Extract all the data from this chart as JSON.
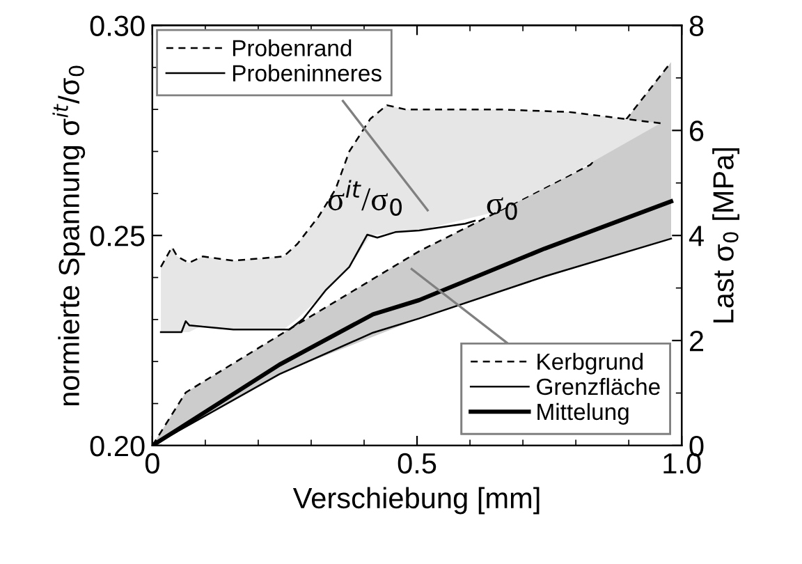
{
  "chart_data": {
    "type": "line",
    "xlabel": "Verschiebung [mm]",
    "ylabel": "normierte Spannung σ$^{it}$/σ$_{0}$",
    "y2label": "Last σ$_{0}$ [MPa]",
    "xlim": [
      0,
      1.0
    ],
    "xticks": [
      0,
      0.5,
      {
        "value": 1.0,
        "label": "1.0"
      }
    ],
    "ylim": [
      0.2,
      0.3
    ],
    "yticks": [
      {
        "value": 0.2,
        "label": "0.20"
      },
      {
        "value": 0.25,
        "label": "0.25"
      },
      {
        "value": 0.3,
        "label": "0.30"
      }
    ],
    "y2lim": [
      0,
      8
    ],
    "y2ticks": [
      0,
      2,
      4,
      6,
      8
    ],
    "grid": false,
    "legend": "top left",
    "marker": "none",
    "annotations": [
      "σ$^{it}$/σ$_{0}$",
      "σ$_{0}$"
    ],
    "series": [
      {
        "name": "Probenrand",
        "color": "#000000",
        "line_style": "dashed",
        "axis": "y",
        "x": [
          0.016,
          0.037,
          0.047,
          0.069,
          0.095,
          0.153,
          0.248,
          0.274,
          0.314,
          0.346,
          0.372,
          0.412,
          0.443,
          0.478,
          0.504,
          0.654,
          0.786,
          0.96
        ],
        "values": [
          0.2425,
          0.2472,
          0.245,
          0.2435,
          0.245,
          0.244,
          0.245,
          0.248,
          0.2545,
          0.261,
          0.27,
          0.2778,
          0.281,
          0.28,
          0.28,
          0.28,
          0.2794,
          0.2767
        ],
        "lower": [
          0.227,
          0.227,
          0.227,
          0.227,
          0.2286,
          0.2276,
          0.2276,
          0.2302,
          0.235,
          0.239,
          0.2425,
          0.25,
          0.2505,
          0.251,
          0.2512,
          0.2558,
          0.2643,
          0.2767
        ],
        "upper": [
          0.2425,
          0.2472,
          0.245,
          0.2435,
          0.245,
          0.244,
          0.245,
          0.248,
          0.2545,
          0.261,
          0.27,
          0.2778,
          0.281,
          0.28,
          0.28,
          0.28,
          0.2794,
          0.2767
        ]
      },
      {
        "name": "Probeninneres",
        "color": "#000000",
        "line_style": "solid",
        "axis": "y",
        "x": [
          0.016,
          0.055,
          0.063,
          0.07,
          0.153,
          0.259,
          0.285,
          0.327,
          0.372,
          0.406,
          0.425,
          0.459,
          0.504,
          0.591,
          0.609
        ],
        "values": [
          0.227,
          0.227,
          0.2296,
          0.2286,
          0.2276,
          0.2276,
          0.2302,
          0.2369,
          0.2425,
          0.2502,
          0.2495,
          0.2508,
          0.2512,
          0.2528,
          0.2535
        ]
      },
      {
        "name": "Kerbgrund",
        "color": "#000000",
        "line_style": "dashed",
        "axis": "y2",
        "x": [
          0,
          0.063,
          0.248,
          0.504,
          0.609,
          0.828,
          0.98
        ],
        "values": [
          0,
          1.01,
          2.15,
          3.7,
          4.23,
          5.35,
          7.3
        ],
        "lower": [
          0,
          0.36,
          1.4,
          2.42,
          2.77,
          3.48,
          3.94
        ],
        "upper": [
          0,
          1.01,
          2.15,
          3.7,
          4.23,
          5.35,
          7.3
        ]
      },
      {
        "name": "Grenzfläche",
        "color": "#000000",
        "line_style": "solid",
        "axis": "y2",
        "x": [
          0,
          0.24,
          0.417,
          0.504,
          0.741,
          0.98
        ],
        "values": [
          0,
          1.36,
          2.15,
          2.42,
          3.22,
          3.94
        ]
      },
      {
        "name": "Mittelung",
        "color": "#000000",
        "line_style": "solid",
        "axis": "y2",
        "x": [
          0,
          0.24,
          0.417,
          0.504,
          0.741,
          0.98
        ],
        "values": [
          0,
          1.54,
          2.5,
          2.77,
          3.75,
          4.65
        ]
      }
    ]
  }
}
